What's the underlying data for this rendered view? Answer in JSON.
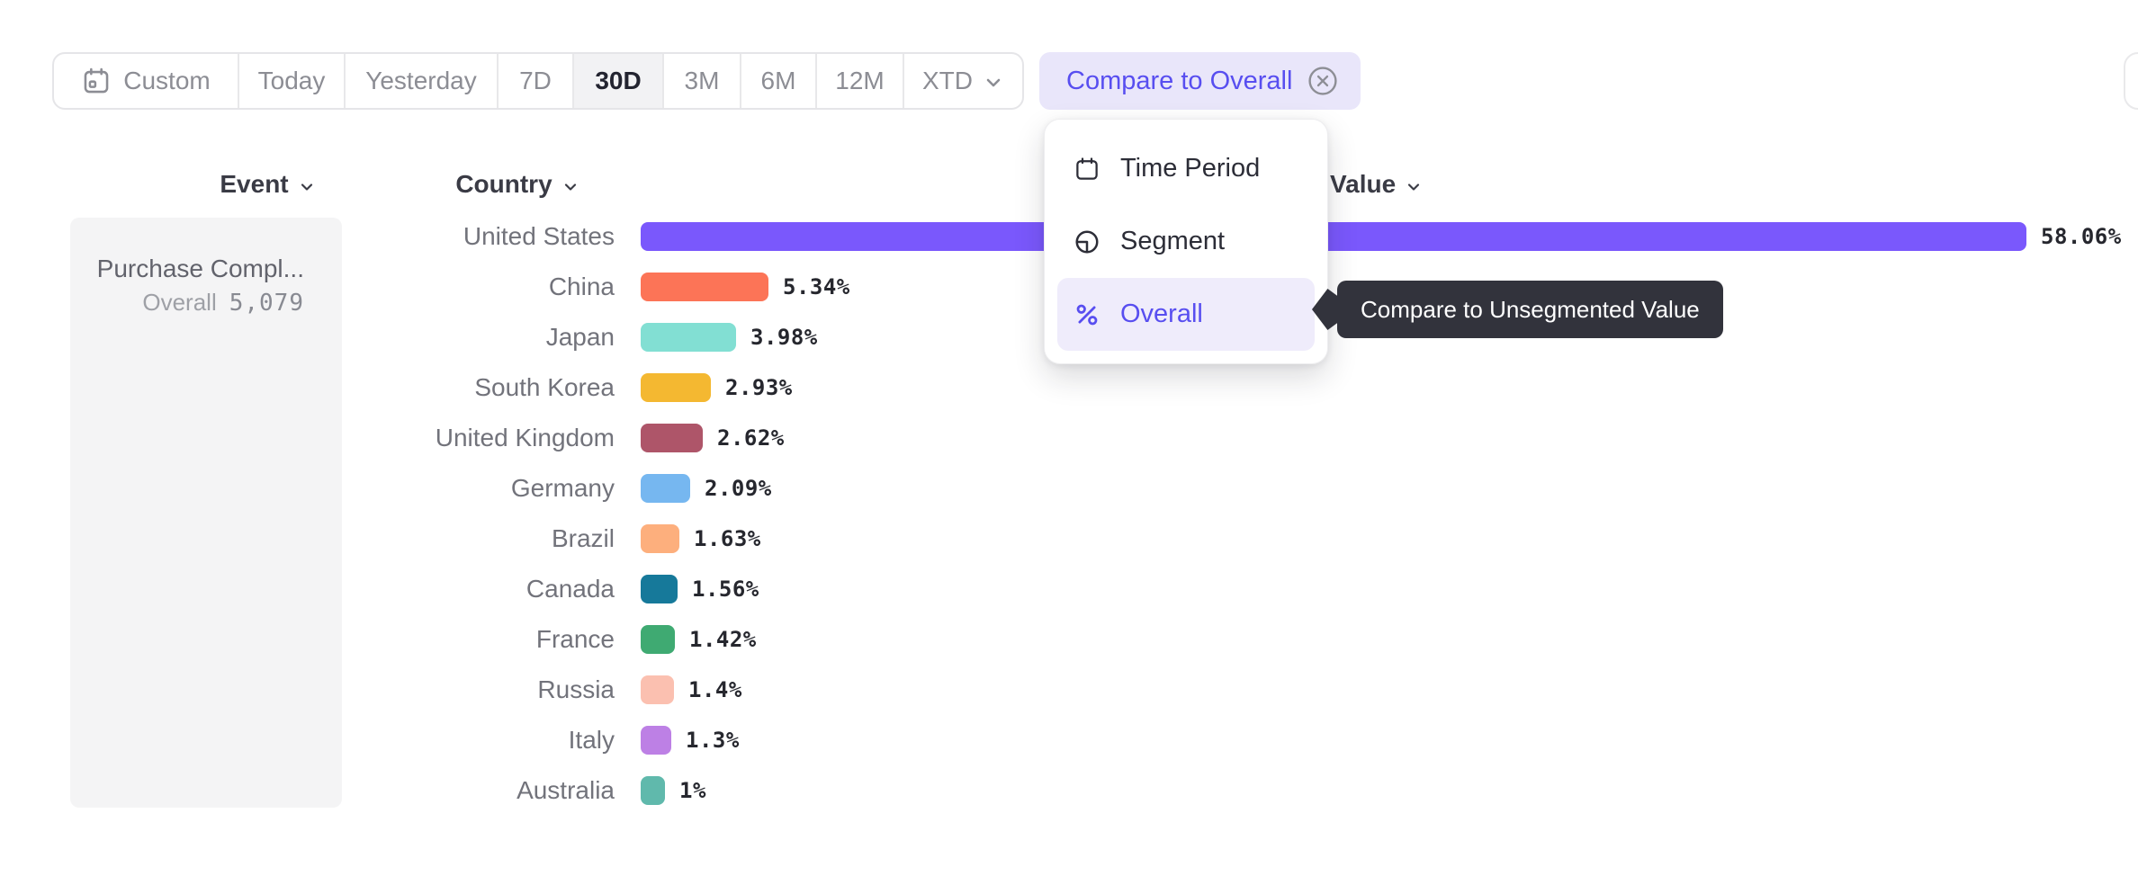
{
  "toolbar": {
    "presets": [
      {
        "label": "Custom",
        "icon": "calendar-custom-icon"
      },
      {
        "label": "Today"
      },
      {
        "label": "Yesterday"
      },
      {
        "label": "7D"
      },
      {
        "label": "30D",
        "selected": true
      },
      {
        "label": "3M"
      },
      {
        "label": "6M"
      },
      {
        "label": "12M"
      },
      {
        "label": "XTD",
        "trailing_icon": "chevron-down-icon"
      }
    ],
    "compare_button": {
      "label": "Compare to Overall",
      "icon": "close-circle-icon"
    }
  },
  "columns": [
    {
      "label": "Event"
    },
    {
      "label": "Country"
    },
    {
      "label": "Value"
    }
  ],
  "event_panel": {
    "event_name": "Purchase Compl...",
    "overall_label": "Overall",
    "overall_value": "5,079"
  },
  "chart_data": {
    "type": "bar",
    "orientation": "horizontal",
    "categories": [
      "United States",
      "China",
      "Japan",
      "South Korea",
      "United Kingdom",
      "Germany",
      "Brazil",
      "Canada",
      "France",
      "Russia",
      "Italy",
      "Australia"
    ],
    "values": [
      58.06,
      5.34,
      3.98,
      2.93,
      2.62,
      2.09,
      1.63,
      1.56,
      1.42,
      1.4,
      1.3,
      1.0
    ],
    "labels": [
      "58.06%",
      "5.34%",
      "3.98%",
      "2.93%",
      "2.62%",
      "2.09%",
      "1.63%",
      "1.56%",
      "1.42%",
      "1.4%",
      "1.3%",
      "1%"
    ],
    "colors": [
      "#7A58FC",
      "#FC7457",
      "#82DFD3",
      "#F4B831",
      "#AE5569",
      "#76B7F0",
      "#FDAF7D",
      "#16799A",
      "#3FAA72",
      "#FBC0B0",
      "#BD80E5",
      "#60B9AC"
    ],
    "xlim": [
      0,
      58.06
    ],
    "ylabel": "Country",
    "xlabel": "Value",
    "grid": false,
    "legend": false
  },
  "menu": {
    "items": [
      {
        "label": "Time Period",
        "icon": "calendar-icon",
        "submenu": true
      },
      {
        "label": "Segment",
        "icon": "segment-icon"
      },
      {
        "label": "Overall",
        "icon": "percent-icon",
        "active": true
      }
    ]
  },
  "tooltip": {
    "text": "Compare to Unsegmented Value"
  },
  "colors": {
    "accent": "#584EF0",
    "accent_bg": "#E9E6FA",
    "menu_active_bg": "#EFECFB",
    "tooltip_bg": "#32333C",
    "selected_preset_bg": "#F2F2F4"
  }
}
